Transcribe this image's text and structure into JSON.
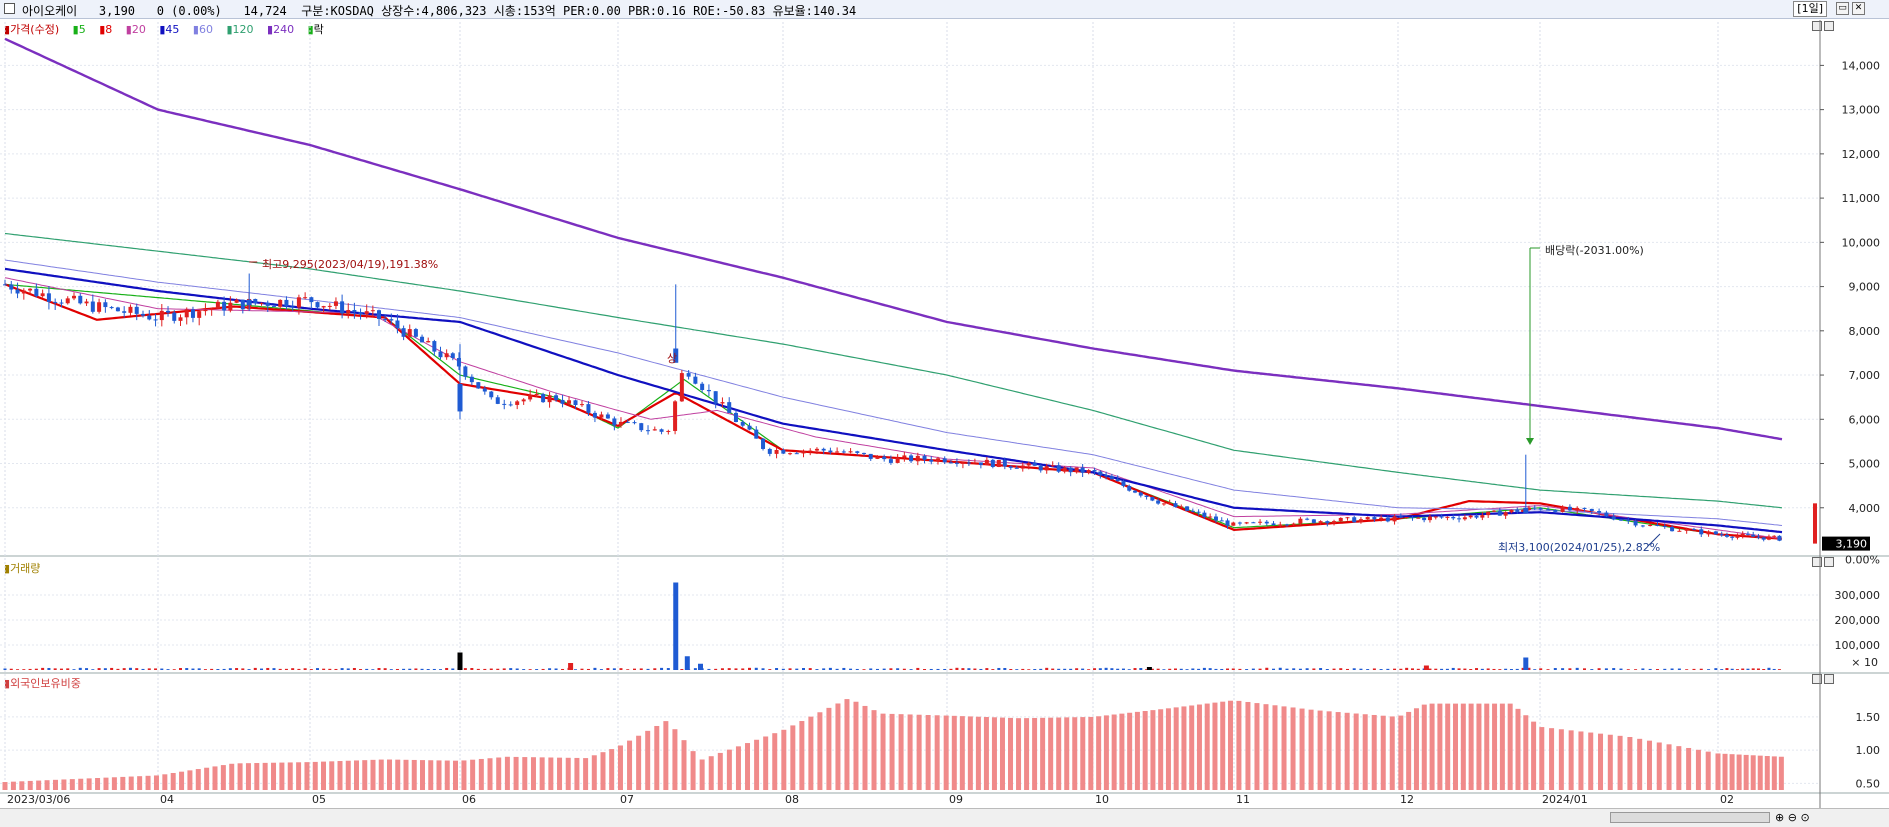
{
  "header": {
    "stock_name": "아이오케이",
    "price": "3,190",
    "change": "0",
    "change_pct": "(0.00%)",
    "volume": "14,724",
    "market": "구분:KOSDAQ",
    "shares": "상장수:4,806,323",
    "mktcap": "시총:153억",
    "per": "PER:0.00",
    "pbr": "PBR:0.16",
    "roe": "ROE:-50.83",
    "float": "유보율:140.34",
    "period_button": "[1일]"
  },
  "legend": {
    "price": "가격(수정)",
    "ma5": "5",
    "ma8": "8",
    "ma20": "20",
    "ma45": "45",
    "ma60": "60",
    "ma120": "120",
    "ma240": "240",
    "rak": "락"
  },
  "annotations": {
    "high": "최고9,295(2023/04/19),191.38%",
    "low": "최저3,100(2024/01/25),2.82%",
    "dividend": "배당락(-2031.00%)",
    "sang": "상"
  },
  "price_axis": {
    "labels": [
      "14,000",
      "13,000",
      "12,000",
      "11,000",
      "10,000",
      "9,000",
      "8,000",
      "7,000",
      "6,000",
      "5,000",
      "4,000"
    ],
    "current": "3,190",
    "current_pct": "0.00%"
  },
  "volume_panel": {
    "label": "거래량",
    "axis": [
      "300,000",
      "200,000",
      "100,000"
    ],
    "unit": "× 10"
  },
  "foreign_panel": {
    "label": "외국인보유비중",
    "axis": [
      "1.50",
      "1.00",
      "0.50"
    ]
  },
  "x_axis": {
    "labels": [
      "2023/03/06",
      "04",
      "05",
      "06",
      "07",
      "08",
      "09",
      "10",
      "11",
      "12",
      "2024/01",
      "02"
    ]
  },
  "colors": {
    "up": "#e02020",
    "down": "#1f5bd3",
    "ma5": "#18b018",
    "ma8": "#e00000",
    "ma20": "#c040a0",
    "ma45": "#1010c0",
    "ma60": "#8080e0",
    "ma120": "#30a070",
    "ma240": "#7b2fbf",
    "foreign": "#f08a8a"
  },
  "chart_data": [
    {
      "type": "candlestick",
      "title": "아이오케이",
      "x": [
        "2023/03/06",
        "04",
        "05",
        "06",
        "07",
        "08",
        "09",
        "10",
        "11",
        "12",
        "2024/01",
        "02"
      ],
      "ylim": [
        3000,
        14800
      ],
      "series": [
        {
          "name": "가격(수정)",
          "keypoints": [
            [
              0,
              9050
            ],
            [
              0.5,
              8600
            ],
            [
              1,
              8300
            ],
            [
              1.5,
              8600
            ],
            [
              2,
              8700
            ],
            [
              2.5,
              8250
            ],
            [
              3,
              7200
            ],
            [
              3.2,
              6400
            ],
            [
              3.6,
              6500
            ],
            [
              4,
              5900
            ],
            [
              4.3,
              5700
            ],
            [
              4.4,
              7200
            ],
            [
              4.6,
              6400
            ],
            [
              4.9,
              5300
            ],
            [
              5.3,
              5300
            ],
            [
              5.6,
              5100
            ],
            [
              6,
              5100
            ],
            [
              6.5,
              4950
            ],
            [
              7,
              4800
            ],
            [
              7.5,
              4100
            ],
            [
              8,
              3600
            ],
            [
              8.4,
              3700
            ],
            [
              9,
              3750
            ],
            [
              9.5,
              3800
            ],
            [
              10,
              4000
            ],
            [
              10.3,
              3900
            ],
            [
              10.6,
              3600
            ],
            [
              11,
              3400
            ],
            [
              11.5,
              3300
            ]
          ]
        },
        {
          "name": "5",
          "keypoints": [
            [
              0,
              9050
            ],
            [
              2.5,
              8300
            ],
            [
              3,
              7000
            ],
            [
              3.6,
              6500
            ],
            [
              4,
              5800
            ],
            [
              4.4,
              6900
            ],
            [
              5,
              5300
            ],
            [
              6,
              5050
            ],
            [
              7,
              4800
            ],
            [
              8,
              3550
            ],
            [
              9,
              3750
            ],
            [
              10,
              4000
            ],
            [
              11,
              3400
            ],
            [
              11.5,
              3300
            ]
          ]
        },
        {
          "name": "8",
          "keypoints": [
            [
              0,
              9050
            ],
            [
              0.6,
              8250
            ],
            [
              1.5,
              8550
            ],
            [
              2.5,
              8300
            ],
            [
              3,
              6800
            ],
            [
              3.6,
              6450
            ],
            [
              4,
              5850
            ],
            [
              4.35,
              6600
            ],
            [
              5,
              5300
            ],
            [
              6,
              5050
            ],
            [
              7,
              4800
            ],
            [
              8,
              3500
            ],
            [
              9,
              3750
            ],
            [
              9.5,
              4150
            ],
            [
              10,
              4100
            ],
            [
              11,
              3400
            ],
            [
              11.5,
              3300
            ]
          ]
        },
        {
          "name": "20",
          "keypoints": [
            [
              0,
              9200
            ],
            [
              1,
              8500
            ],
            [
              2.4,
              8400
            ],
            [
              3,
              7300
            ],
            [
              3.6,
              6600
            ],
            [
              4.2,
              6000
            ],
            [
              4.6,
              6200
            ],
            [
              5.2,
              5600
            ],
            [
              6,
              5100
            ],
            [
              7,
              4900
            ],
            [
              8,
              3800
            ],
            [
              9,
              3850
            ],
            [
              10,
              4050
            ],
            [
              11,
              3500
            ],
            [
              11.5,
              3300
            ]
          ]
        },
        {
          "name": "45",
          "keypoints": [
            [
              0,
              9400
            ],
            [
              1,
              8900
            ],
            [
              2,
              8500
            ],
            [
              3,
              8200
            ],
            [
              4,
              7000
            ],
            [
              5,
              5900
            ],
            [
              6,
              5300
            ],
            [
              7,
              4800
            ],
            [
              8,
              4000
            ],
            [
              9,
              3800
            ],
            [
              10,
              3900
            ],
            [
              11,
              3600
            ],
            [
              11.5,
              3450
            ]
          ]
        },
        {
          "name": "60",
          "keypoints": [
            [
              0,
              9600
            ],
            [
              1,
              9100
            ],
            [
              2,
              8700
            ],
            [
              3,
              8300
            ],
            [
              4,
              7500
            ],
            [
              5,
              6500
            ],
            [
              6,
              5700
            ],
            [
              7,
              5200
            ],
            [
              8,
              4400
            ],
            [
              9,
              4000
            ],
            [
              10,
              3950
            ],
            [
              11,
              3750
            ],
            [
              11.5,
              3600
            ]
          ]
        },
        {
          "name": "120",
          "keypoints": [
            [
              0,
              10200
            ],
            [
              1,
              9800
            ],
            [
              2,
              9400
            ],
            [
              3,
              8900
            ],
            [
              4,
              8300
            ],
            [
              5,
              7700
            ],
            [
              6,
              7000
            ],
            [
              7,
              6200
            ],
            [
              8,
              5300
            ],
            [
              9,
              4800
            ],
            [
              10,
              4400
            ],
            [
              11,
              4150
            ],
            [
              11.5,
              4000
            ]
          ]
        },
        {
          "name": "240",
          "keypoints": [
            [
              0,
              14600
            ],
            [
              0.5,
              13800
            ],
            [
              1,
              13000
            ],
            [
              2,
              12200
            ],
            [
              3,
              11200
            ],
            [
              4,
              10100
            ],
            [
              5,
              9200
            ],
            [
              6,
              8200
            ],
            [
              7,
              7600
            ],
            [
              8,
              7100
            ],
            [
              9,
              6700
            ],
            [
              10,
              6300
            ],
            [
              11,
              5800
            ],
            [
              11.5,
              5550
            ]
          ]
        }
      ]
    },
    {
      "type": "bar",
      "title": "거래량",
      "ylim": [
        0,
        380000
      ],
      "spikes": [
        [
          3.0,
          70000
        ],
        [
          4.35,
          350000
        ],
        [
          4.42,
          55000
        ],
        [
          4.5,
          25000
        ],
        [
          3.7,
          28000
        ],
        [
          9.2,
          18000
        ],
        [
          9.9,
          50000
        ],
        [
          7.4,
          12000
        ]
      ]
    },
    {
      "type": "bar",
      "title": "외국인보유비중",
      "ylim": [
        0.4,
        1.95
      ],
      "keypoints": [
        [
          0,
          0.52
        ],
        [
          0.6,
          0.58
        ],
        [
          1,
          0.62
        ],
        [
          1.5,
          0.8
        ],
        [
          2,
          0.82
        ],
        [
          2.5,
          0.86
        ],
        [
          3,
          0.84
        ],
        [
          3.3,
          0.9
        ],
        [
          3.8,
          0.88
        ],
        [
          4,
          1.05
        ],
        [
          4.3,
          1.45
        ],
        [
          4.5,
          0.85
        ],
        [
          5,
          1.3
        ],
        [
          5.4,
          1.78
        ],
        [
          5.6,
          1.55
        ],
        [
          6,
          1.52
        ],
        [
          6.5,
          1.48
        ],
        [
          7,
          1.5
        ],
        [
          7.5,
          1.62
        ],
        [
          8,
          1.75
        ],
        [
          8.5,
          1.6
        ],
        [
          9,
          1.5
        ],
        [
          9.2,
          1.7
        ],
        [
          9.8,
          1.7
        ],
        [
          10,
          1.35
        ],
        [
          10.5,
          1.2
        ],
        [
          11,
          0.95
        ],
        [
          11.5,
          0.9
        ]
      ]
    }
  ]
}
